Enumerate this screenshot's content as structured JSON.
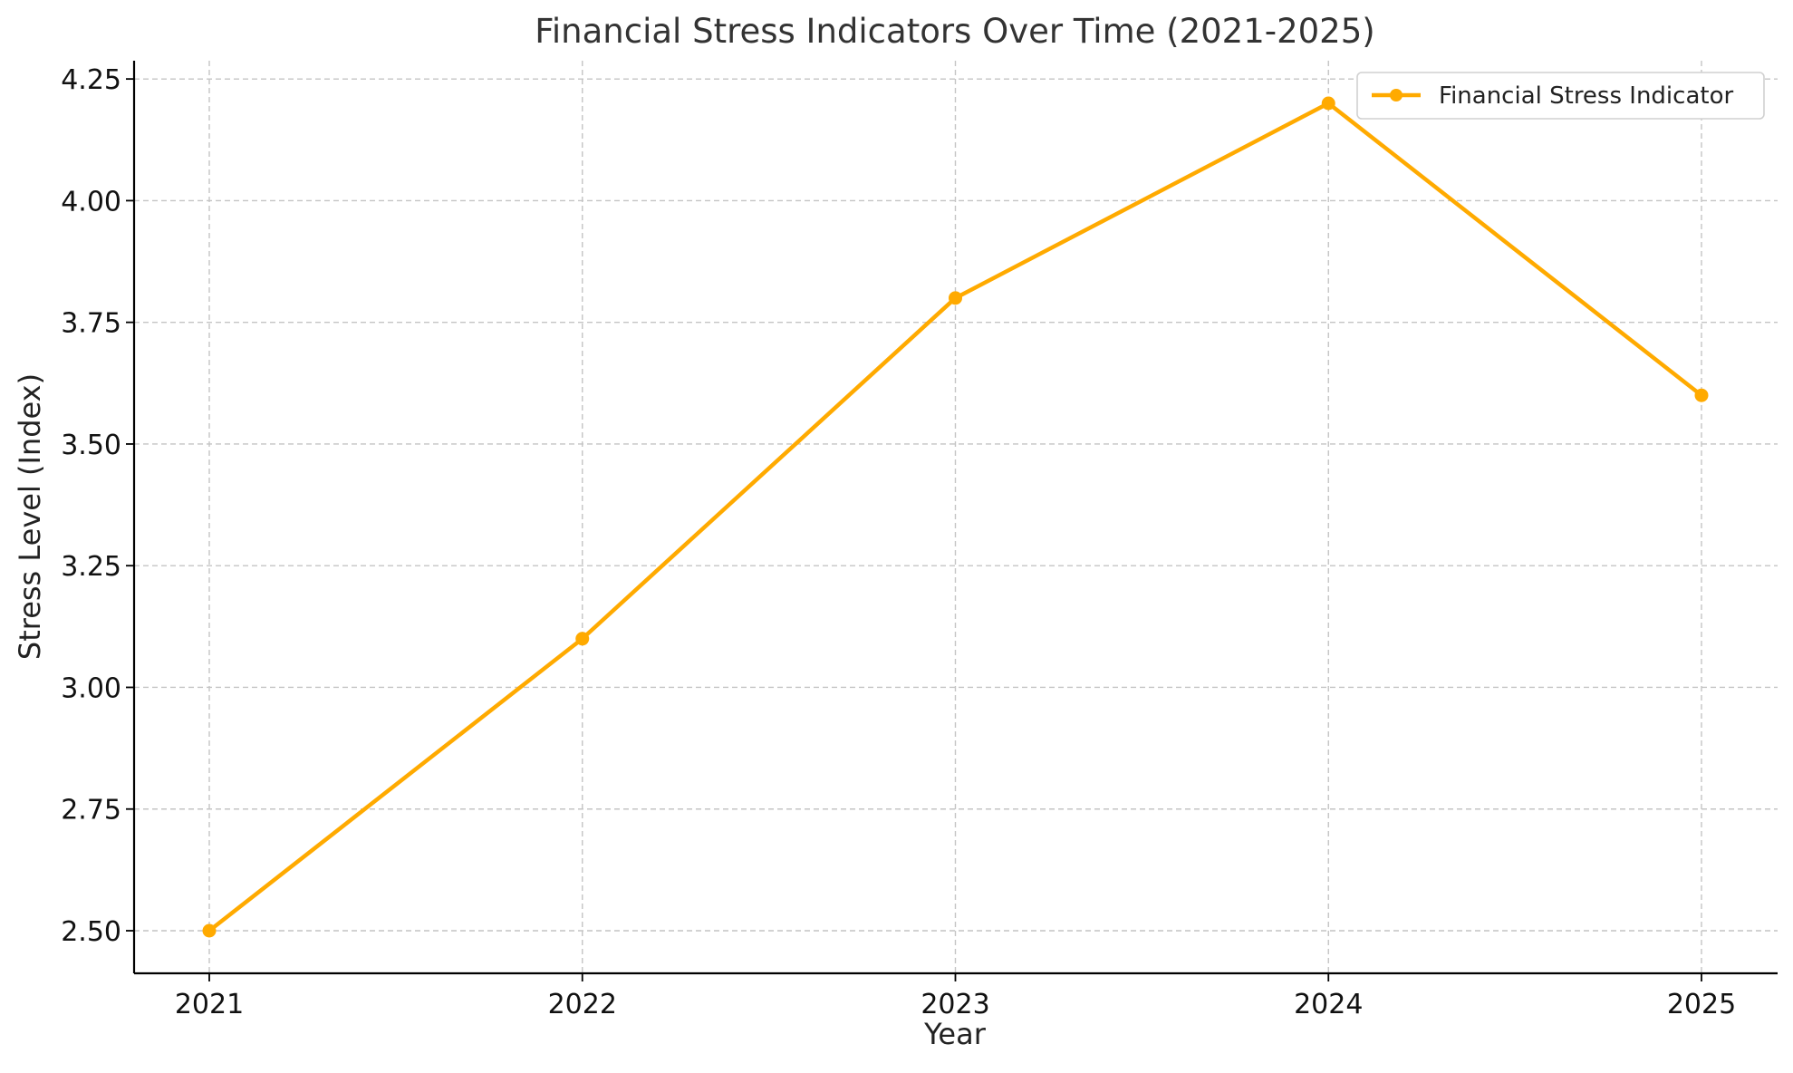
{
  "chart_data": {
    "type": "line",
    "title": "Financial Stress Indicators Over Time (2021-2025)",
    "xlabel": "Year",
    "ylabel": "Stress Level (Index)",
    "x": [
      "2021",
      "2022",
      "2023",
      "2024",
      "2025"
    ],
    "series": [
      {
        "name": "Financial Stress Indicator",
        "color": "#FFAA00",
        "marker": "circle",
        "values": [
          2.5,
          3.1,
          3.8,
          4.2,
          3.6
        ]
      }
    ],
    "ylim": [
      2.4125,
      4.2875
    ],
    "yticks": [
      2.5,
      2.75,
      3.0,
      3.25,
      3.5,
      3.75,
      4.0,
      4.25
    ],
    "ytick_labels": [
      "2.50",
      "2.75",
      "3.00",
      "3.25",
      "3.50",
      "3.75",
      "4.00",
      "4.25"
    ],
    "grid": true,
    "legend_position": "top-right"
  }
}
